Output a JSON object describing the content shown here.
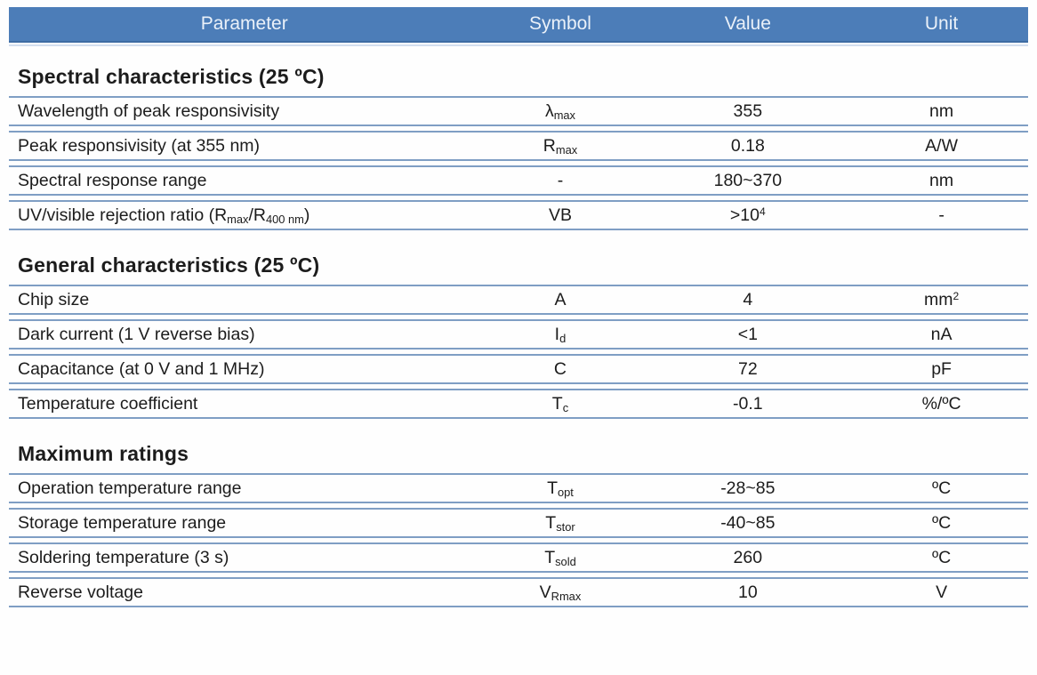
{
  "colors": {
    "header_bg": "#4C7DB8",
    "header_text": "#EAF1F9",
    "row_line": "#7F9EC4"
  },
  "header": {
    "columns": [
      "Parameter",
      "Symbol",
      "Value",
      "Unit"
    ]
  },
  "sections": [
    {
      "title": "Spectral characteristics (25 ºC)",
      "rows": [
        {
          "parameter": [
            {
              "text": "Wavelength of peak responsivisity"
            }
          ],
          "symbol": [
            {
              "text": "λ"
            },
            {
              "text": "max",
              "style": "sub"
            }
          ],
          "value": [
            {
              "text": "355"
            }
          ],
          "unit": [
            {
              "text": "nm"
            }
          ]
        },
        {
          "parameter": [
            {
              "text": "Peak responsivisity (at 355 nm)"
            }
          ],
          "symbol": [
            {
              "text": "R"
            },
            {
              "text": "max",
              "style": "sub"
            }
          ],
          "value": [
            {
              "text": "0.18"
            }
          ],
          "unit": [
            {
              "text": "A/W"
            }
          ]
        },
        {
          "parameter": [
            {
              "text": "Spectral response range"
            }
          ],
          "symbol": [
            {
              "text": "-"
            }
          ],
          "value": [
            {
              "text": "180~370"
            }
          ],
          "unit": [
            {
              "text": "nm"
            }
          ]
        },
        {
          "parameter": [
            {
              "text": "UV/visible rejection ratio (R"
            },
            {
              "text": "max",
              "style": "sub"
            },
            {
              "text": "/R"
            },
            {
              "text": "400 nm",
              "style": "sub"
            },
            {
              "text": ")"
            }
          ],
          "symbol": [
            {
              "text": "VB"
            }
          ],
          "value": [
            {
              "text": ">10"
            },
            {
              "text": "4",
              "style": "sup"
            }
          ],
          "unit": [
            {
              "text": "-"
            }
          ]
        }
      ]
    },
    {
      "title": "General characteristics (25 ºC)",
      "rows": [
        {
          "parameter": [
            {
              "text": "Chip size"
            }
          ],
          "symbol": [
            {
              "text": "A"
            }
          ],
          "value": [
            {
              "text": "4"
            }
          ],
          "unit": [
            {
              "text": "mm"
            },
            {
              "text": "2",
              "style": "sup"
            }
          ]
        },
        {
          "parameter": [
            {
              "text": "Dark current (1 V reverse bias)"
            }
          ],
          "symbol": [
            {
              "text": "I"
            },
            {
              "text": "d",
              "style": "sub"
            }
          ],
          "value": [
            {
              "text": "<1"
            }
          ],
          "unit": [
            {
              "text": "nA"
            }
          ]
        },
        {
          "parameter": [
            {
              "text": "Capacitance (at 0 V and 1 MHz)"
            }
          ],
          "symbol": [
            {
              "text": "C"
            }
          ],
          "value": [
            {
              "text": "72"
            }
          ],
          "unit": [
            {
              "text": "pF"
            }
          ]
        },
        {
          "parameter": [
            {
              "text": "Temperature coefficient"
            }
          ],
          "symbol": [
            {
              "text": "T"
            },
            {
              "text": "c",
              "style": "sub"
            }
          ],
          "value": [
            {
              "text": "-0.1"
            }
          ],
          "unit": [
            {
              "text": "%/ºC"
            }
          ]
        }
      ]
    },
    {
      "title": "Maximum ratings",
      "rows": [
        {
          "parameter": [
            {
              "text": "Operation temperature range"
            }
          ],
          "symbol": [
            {
              "text": "T"
            },
            {
              "text": "opt",
              "style": "sub"
            }
          ],
          "value": [
            {
              "text": "-28~85"
            }
          ],
          "unit": [
            {
              "text": "ºC"
            }
          ]
        },
        {
          "parameter": [
            {
              "text": "Storage temperature range"
            }
          ],
          "symbol": [
            {
              "text": "T"
            },
            {
              "text": "stor",
              "style": "sub"
            }
          ],
          "value": [
            {
              "text": "-40~85"
            }
          ],
          "unit": [
            {
              "text": "ºC"
            }
          ]
        },
        {
          "parameter": [
            {
              "text": "Soldering temperature (3 s)"
            }
          ],
          "symbol": [
            {
              "text": "T"
            },
            {
              "text": "sold",
              "style": "sub"
            }
          ],
          "value": [
            {
              "text": "260"
            }
          ],
          "unit": [
            {
              "text": "ºC"
            }
          ]
        },
        {
          "parameter": [
            {
              "text": "Reverse voltage"
            }
          ],
          "symbol": [
            {
              "text": "V"
            },
            {
              "text": "Rmax",
              "style": "sub"
            }
          ],
          "value": [
            {
              "text": "10"
            }
          ],
          "unit": [
            {
              "text": "V"
            }
          ]
        }
      ]
    }
  ]
}
